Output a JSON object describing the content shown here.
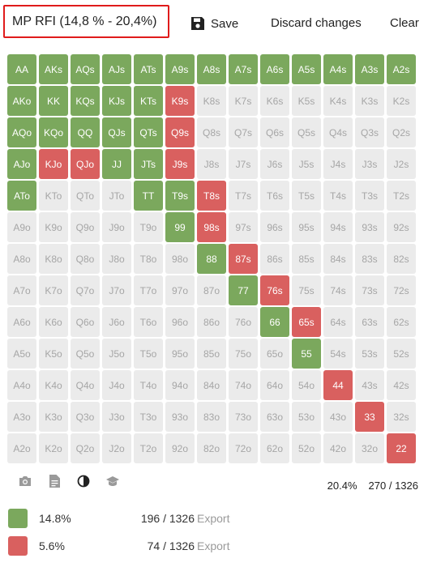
{
  "header": {
    "title": "MP RFI (14,8 % - 20,4%)",
    "save_label": "Save",
    "discard_label": "Discard changes",
    "clear_label": "Clear"
  },
  "colors": {
    "green": "#7ba85d",
    "red": "#d9605f",
    "empty": "#ebebeb"
  },
  "grid": {
    "rows": [
      [
        [
          "AA",
          "g"
        ],
        [
          "AKs",
          "g"
        ],
        [
          "AQs",
          "g"
        ],
        [
          "AJs",
          "g"
        ],
        [
          "ATs",
          "g"
        ],
        [
          "A9s",
          "g"
        ],
        [
          "A8s",
          "g"
        ],
        [
          "A7s",
          "g"
        ],
        [
          "A6s",
          "g"
        ],
        [
          "A5s",
          "g"
        ],
        [
          "A4s",
          "g"
        ],
        [
          "A3s",
          "g"
        ],
        [
          "A2s",
          "g"
        ]
      ],
      [
        [
          "AKo",
          "g"
        ],
        [
          "KK",
          "g"
        ],
        [
          "KQs",
          "g"
        ],
        [
          "KJs",
          "g"
        ],
        [
          "KTs",
          "g"
        ],
        [
          "K9s",
          "r"
        ],
        [
          "K8s",
          ""
        ],
        [
          "K7s",
          ""
        ],
        [
          "K6s",
          ""
        ],
        [
          "K5s",
          ""
        ],
        [
          "K4s",
          ""
        ],
        [
          "K3s",
          ""
        ],
        [
          "K2s",
          ""
        ]
      ],
      [
        [
          "AQo",
          "g"
        ],
        [
          "KQo",
          "g"
        ],
        [
          "QQ",
          "g"
        ],
        [
          "QJs",
          "g"
        ],
        [
          "QTs",
          "g"
        ],
        [
          "Q9s",
          "r"
        ],
        [
          "Q8s",
          ""
        ],
        [
          "Q7s",
          ""
        ],
        [
          "Q6s",
          ""
        ],
        [
          "Q5s",
          ""
        ],
        [
          "Q4s",
          ""
        ],
        [
          "Q3s",
          ""
        ],
        [
          "Q2s",
          ""
        ]
      ],
      [
        [
          "AJo",
          "g"
        ],
        [
          "KJo",
          "r"
        ],
        [
          "QJo",
          "r"
        ],
        [
          "JJ",
          "g"
        ],
        [
          "JTs",
          "g"
        ],
        [
          "J9s",
          "r"
        ],
        [
          "J8s",
          ""
        ],
        [
          "J7s",
          ""
        ],
        [
          "J6s",
          ""
        ],
        [
          "J5s",
          ""
        ],
        [
          "J4s",
          ""
        ],
        [
          "J3s",
          ""
        ],
        [
          "J2s",
          ""
        ]
      ],
      [
        [
          "ATo",
          "g"
        ],
        [
          "KTo",
          ""
        ],
        [
          "QTo",
          ""
        ],
        [
          "JTo",
          ""
        ],
        [
          "TT",
          "g"
        ],
        [
          "T9s",
          "g"
        ],
        [
          "T8s",
          "r"
        ],
        [
          "T7s",
          ""
        ],
        [
          "T6s",
          ""
        ],
        [
          "T5s",
          ""
        ],
        [
          "T4s",
          ""
        ],
        [
          "T3s",
          ""
        ],
        [
          "T2s",
          ""
        ]
      ],
      [
        [
          "A9o",
          ""
        ],
        [
          "K9o",
          ""
        ],
        [
          "Q9o",
          ""
        ],
        [
          "J9o",
          ""
        ],
        [
          "T9o",
          ""
        ],
        [
          "99",
          "g"
        ],
        [
          "98s",
          "r"
        ],
        [
          "97s",
          ""
        ],
        [
          "96s",
          ""
        ],
        [
          "95s",
          ""
        ],
        [
          "94s",
          ""
        ],
        [
          "93s",
          ""
        ],
        [
          "92s",
          ""
        ]
      ],
      [
        [
          "A8o",
          ""
        ],
        [
          "K8o",
          ""
        ],
        [
          "Q8o",
          ""
        ],
        [
          "J8o",
          ""
        ],
        [
          "T8o",
          ""
        ],
        [
          "98o",
          ""
        ],
        [
          "88",
          "g"
        ],
        [
          "87s",
          "r"
        ],
        [
          "86s",
          ""
        ],
        [
          "85s",
          ""
        ],
        [
          "84s",
          ""
        ],
        [
          "83s",
          ""
        ],
        [
          "82s",
          ""
        ]
      ],
      [
        [
          "A7o",
          ""
        ],
        [
          "K7o",
          ""
        ],
        [
          "Q7o",
          ""
        ],
        [
          "J7o",
          ""
        ],
        [
          "T7o",
          ""
        ],
        [
          "97o",
          ""
        ],
        [
          "87o",
          ""
        ],
        [
          "77",
          "g"
        ],
        [
          "76s",
          "r"
        ],
        [
          "75s",
          ""
        ],
        [
          "74s",
          ""
        ],
        [
          "73s",
          ""
        ],
        [
          "72s",
          ""
        ]
      ],
      [
        [
          "A6o",
          ""
        ],
        [
          "K6o",
          ""
        ],
        [
          "Q6o",
          ""
        ],
        [
          "J6o",
          ""
        ],
        [
          "T6o",
          ""
        ],
        [
          "96o",
          ""
        ],
        [
          "86o",
          ""
        ],
        [
          "76o",
          ""
        ],
        [
          "66",
          "g"
        ],
        [
          "65s",
          "r"
        ],
        [
          "64s",
          ""
        ],
        [
          "63s",
          ""
        ],
        [
          "62s",
          ""
        ]
      ],
      [
        [
          "A5o",
          ""
        ],
        [
          "K5o",
          ""
        ],
        [
          "Q5o",
          ""
        ],
        [
          "J5o",
          ""
        ],
        [
          "T5o",
          ""
        ],
        [
          "95o",
          ""
        ],
        [
          "85o",
          ""
        ],
        [
          "75o",
          ""
        ],
        [
          "65o",
          ""
        ],
        [
          "55",
          "g"
        ],
        [
          "54s",
          ""
        ],
        [
          "53s",
          ""
        ],
        [
          "52s",
          ""
        ]
      ],
      [
        [
          "A4o",
          ""
        ],
        [
          "K4o",
          ""
        ],
        [
          "Q4o",
          ""
        ],
        [
          "J4o",
          ""
        ],
        [
          "T4o",
          ""
        ],
        [
          "94o",
          ""
        ],
        [
          "84o",
          ""
        ],
        [
          "74o",
          ""
        ],
        [
          "64o",
          ""
        ],
        [
          "54o",
          ""
        ],
        [
          "44",
          "r"
        ],
        [
          "43s",
          ""
        ],
        [
          "42s",
          ""
        ]
      ],
      [
        [
          "A3o",
          ""
        ],
        [
          "K3o",
          ""
        ],
        [
          "Q3o",
          ""
        ],
        [
          "J3o",
          ""
        ],
        [
          "T3o",
          ""
        ],
        [
          "93o",
          ""
        ],
        [
          "83o",
          ""
        ],
        [
          "73o",
          ""
        ],
        [
          "63o",
          ""
        ],
        [
          "53o",
          ""
        ],
        [
          "43o",
          ""
        ],
        [
          "33",
          "r"
        ],
        [
          "32s",
          ""
        ]
      ],
      [
        [
          "A2o",
          ""
        ],
        [
          "K2o",
          ""
        ],
        [
          "Q2o",
          ""
        ],
        [
          "J2o",
          ""
        ],
        [
          "T2o",
          ""
        ],
        [
          "92o",
          ""
        ],
        [
          "82o",
          ""
        ],
        [
          "72o",
          ""
        ],
        [
          "62o",
          ""
        ],
        [
          "52o",
          ""
        ],
        [
          "42o",
          ""
        ],
        [
          "32o",
          ""
        ],
        [
          "22",
          "r"
        ]
      ]
    ]
  },
  "toolbar": {
    "icons": [
      "camera-icon",
      "document-icon",
      "contrast-icon",
      "graduation-cap-icon"
    ]
  },
  "totals": {
    "percent": "20.4%",
    "combos": "270 / 1326"
  },
  "legend": [
    {
      "color": "#7ba85d",
      "percent": "14.8%",
      "combos": "196 / 1326",
      "export_label": "Export"
    },
    {
      "color": "#d9605f",
      "percent": "5.6%",
      "combos": "74 / 1326",
      "export_label": "Export"
    }
  ]
}
